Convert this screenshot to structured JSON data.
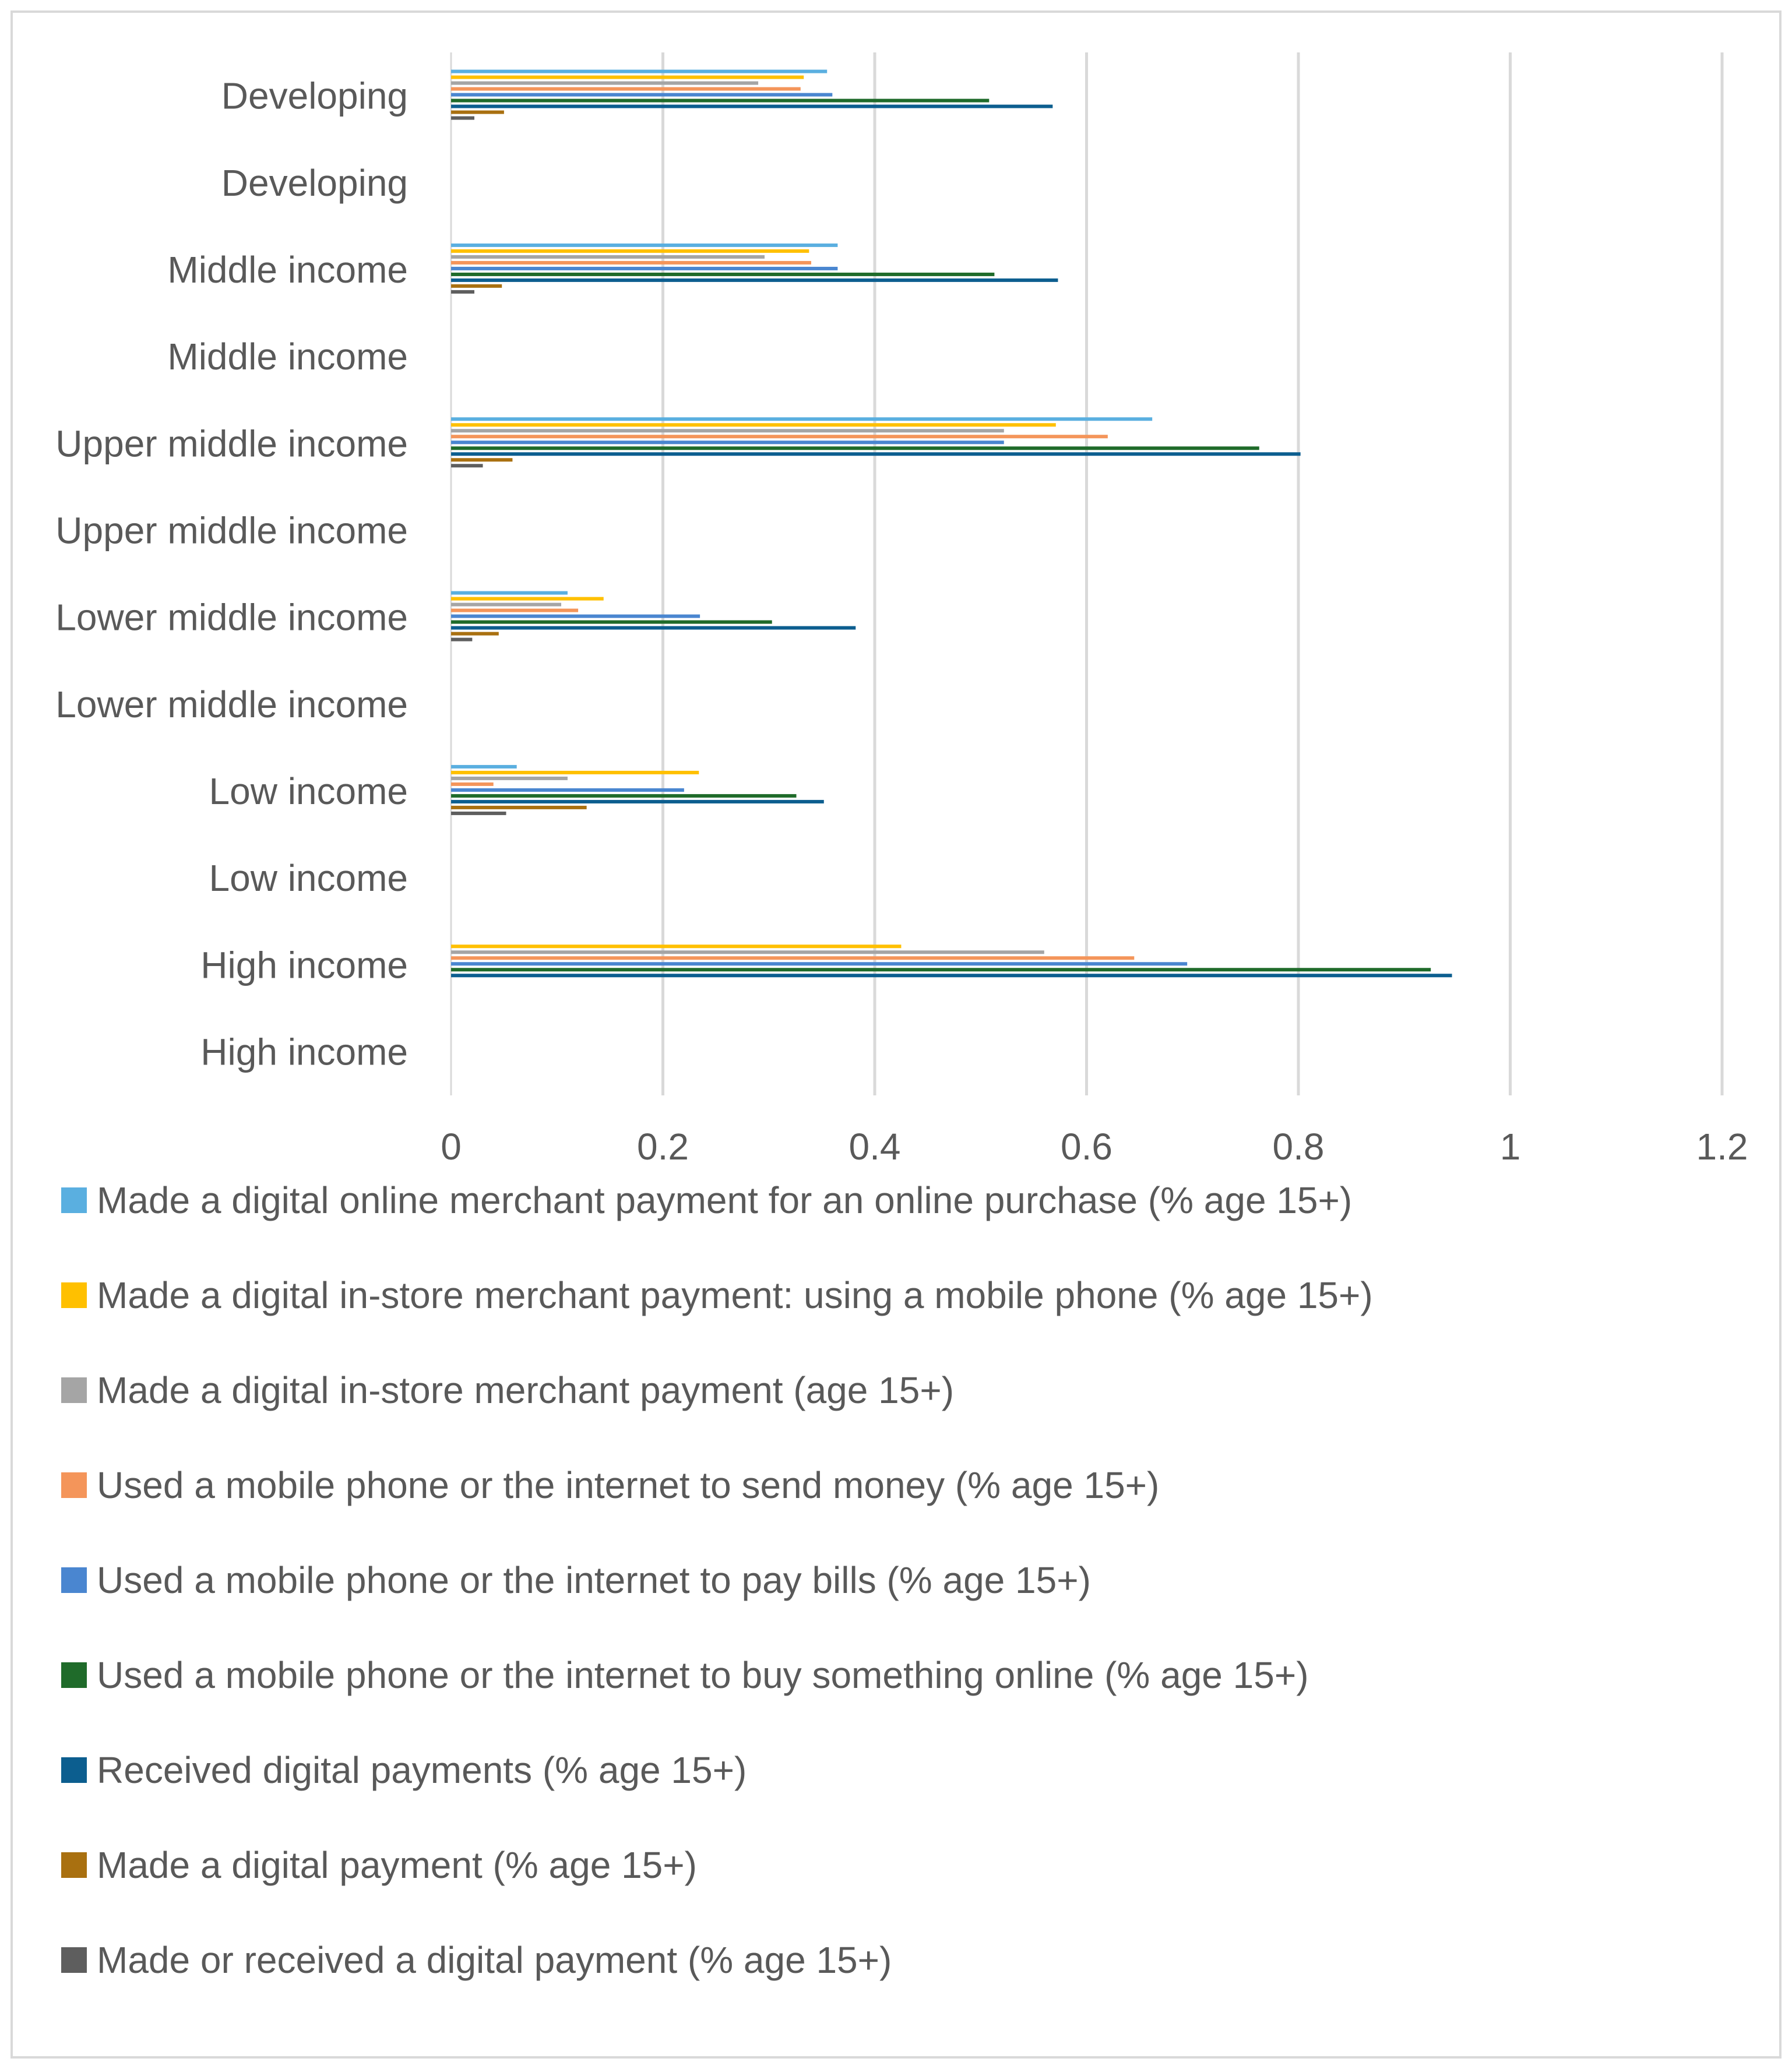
{
  "chart_data": {
    "type": "bar",
    "orientation": "horizontal",
    "title": "",
    "xlabel": "",
    "ylabel": "",
    "xlim": [
      0,
      1.2
    ],
    "xticks": [
      "0",
      "0.2",
      "0.4",
      "0.6",
      "0.8",
      "1",
      "1.2"
    ],
    "grid": true,
    "legend_position": "bottom",
    "categories": [
      "Developing",
      "Developing",
      "Middle income",
      "Middle income",
      "Upper middle income",
      "Upper middle income",
      "Lower middle income",
      "Lower middle income",
      "Low income",
      "Low income",
      "High income",
      "High income"
    ],
    "series": [
      {
        "name": "Made a digital online merchant payment for an online purchase (% age 15+)",
        "color": "#5aafe0",
        "values": [
          0.355,
          0.0,
          0.365,
          0.0,
          0.662,
          0.0,
          0.11,
          0.0,
          0.062,
          0.0,
          0.0,
          0.0
        ]
      },
      {
        "name": "Made a digital in-store merchant payment: using a mobile phone (% age 15+)",
        "color": "#ffc000",
        "values": [
          0.333,
          0.0,
          0.338,
          0.0,
          0.571,
          0.0,
          0.144,
          0.0,
          0.234,
          0.0,
          0.425,
          0.0
        ]
      },
      {
        "name": "Made a digital in-store merchant payment (age 15+)",
        "color": "#a5a5a5",
        "values": [
          0.29,
          0.0,
          0.296,
          0.0,
          0.522,
          0.0,
          0.104,
          0.0,
          0.11,
          0.0,
          0.56,
          0.0
        ]
      },
      {
        "name": "Used a mobile phone or the internet to send money (% age 15+)",
        "color": "#f4955a",
        "values": [
          0.33,
          0.0,
          0.34,
          0.0,
          0.62,
          0.0,
          0.12,
          0.0,
          0.04,
          0.0,
          0.645,
          0.0
        ]
      },
      {
        "name": "Used a mobile phone or the internet to pay bills (% age 15+)",
        "color": "#4a86d0",
        "values": [
          0.36,
          0.0,
          0.365,
          0.0,
          0.522,
          0.0,
          0.235,
          0.0,
          0.22,
          0.0,
          0.695,
          0.0
        ]
      },
      {
        "name": "Used a mobile phone or the internet to buy something online (% age 15+)",
        "color": "#1f6b2a",
        "values": [
          0.508,
          0.0,
          0.513,
          0.0,
          0.763,
          0.0,
          0.303,
          0.0,
          0.326,
          0.0,
          0.925,
          0.0
        ]
      },
      {
        "name": "Received digital payments (% age 15+)",
        "color": "#0c5e8f",
        "values": [
          0.568,
          0.0,
          0.573,
          0.0,
          0.802,
          0.0,
          0.382,
          0.0,
          0.352,
          0.0,
          0.945,
          0.0
        ]
      },
      {
        "name": "Made a digital payment (% age 15+)",
        "color": "#a97010",
        "values": [
          0.05,
          0.0,
          0.048,
          0.0,
          0.058,
          0.0,
          0.045,
          0.0,
          0.128,
          0.0,
          0.0,
          0.0
        ]
      },
      {
        "name": "Made or received a digital payment (% age 15+)",
        "color": "#5e5e5e",
        "values": [
          0.022,
          0.0,
          0.022,
          0.0,
          0.03,
          0.0,
          0.02,
          0.0,
          0.052,
          0.0,
          0.0,
          0.0
        ]
      }
    ]
  },
  "legend": [
    "Made a digital online merchant payment for an online purchase (% age 15+)",
    "Made a digital in-store merchant payment: using a mobile phone (% age 15+)",
    "Made a digital in-store merchant payment (age 15+)",
    "Used a mobile phone or the internet to send money (% age 15+)",
    "Used a mobile phone or the internet to pay bills (% age 15+)",
    "Used a mobile phone or the internet to buy something online (% age 15+)",
    "Received digital payments (% age 15+)",
    "Made a digital payment (% age 15+)",
    "Made or received a digital payment (% age 15+)"
  ]
}
